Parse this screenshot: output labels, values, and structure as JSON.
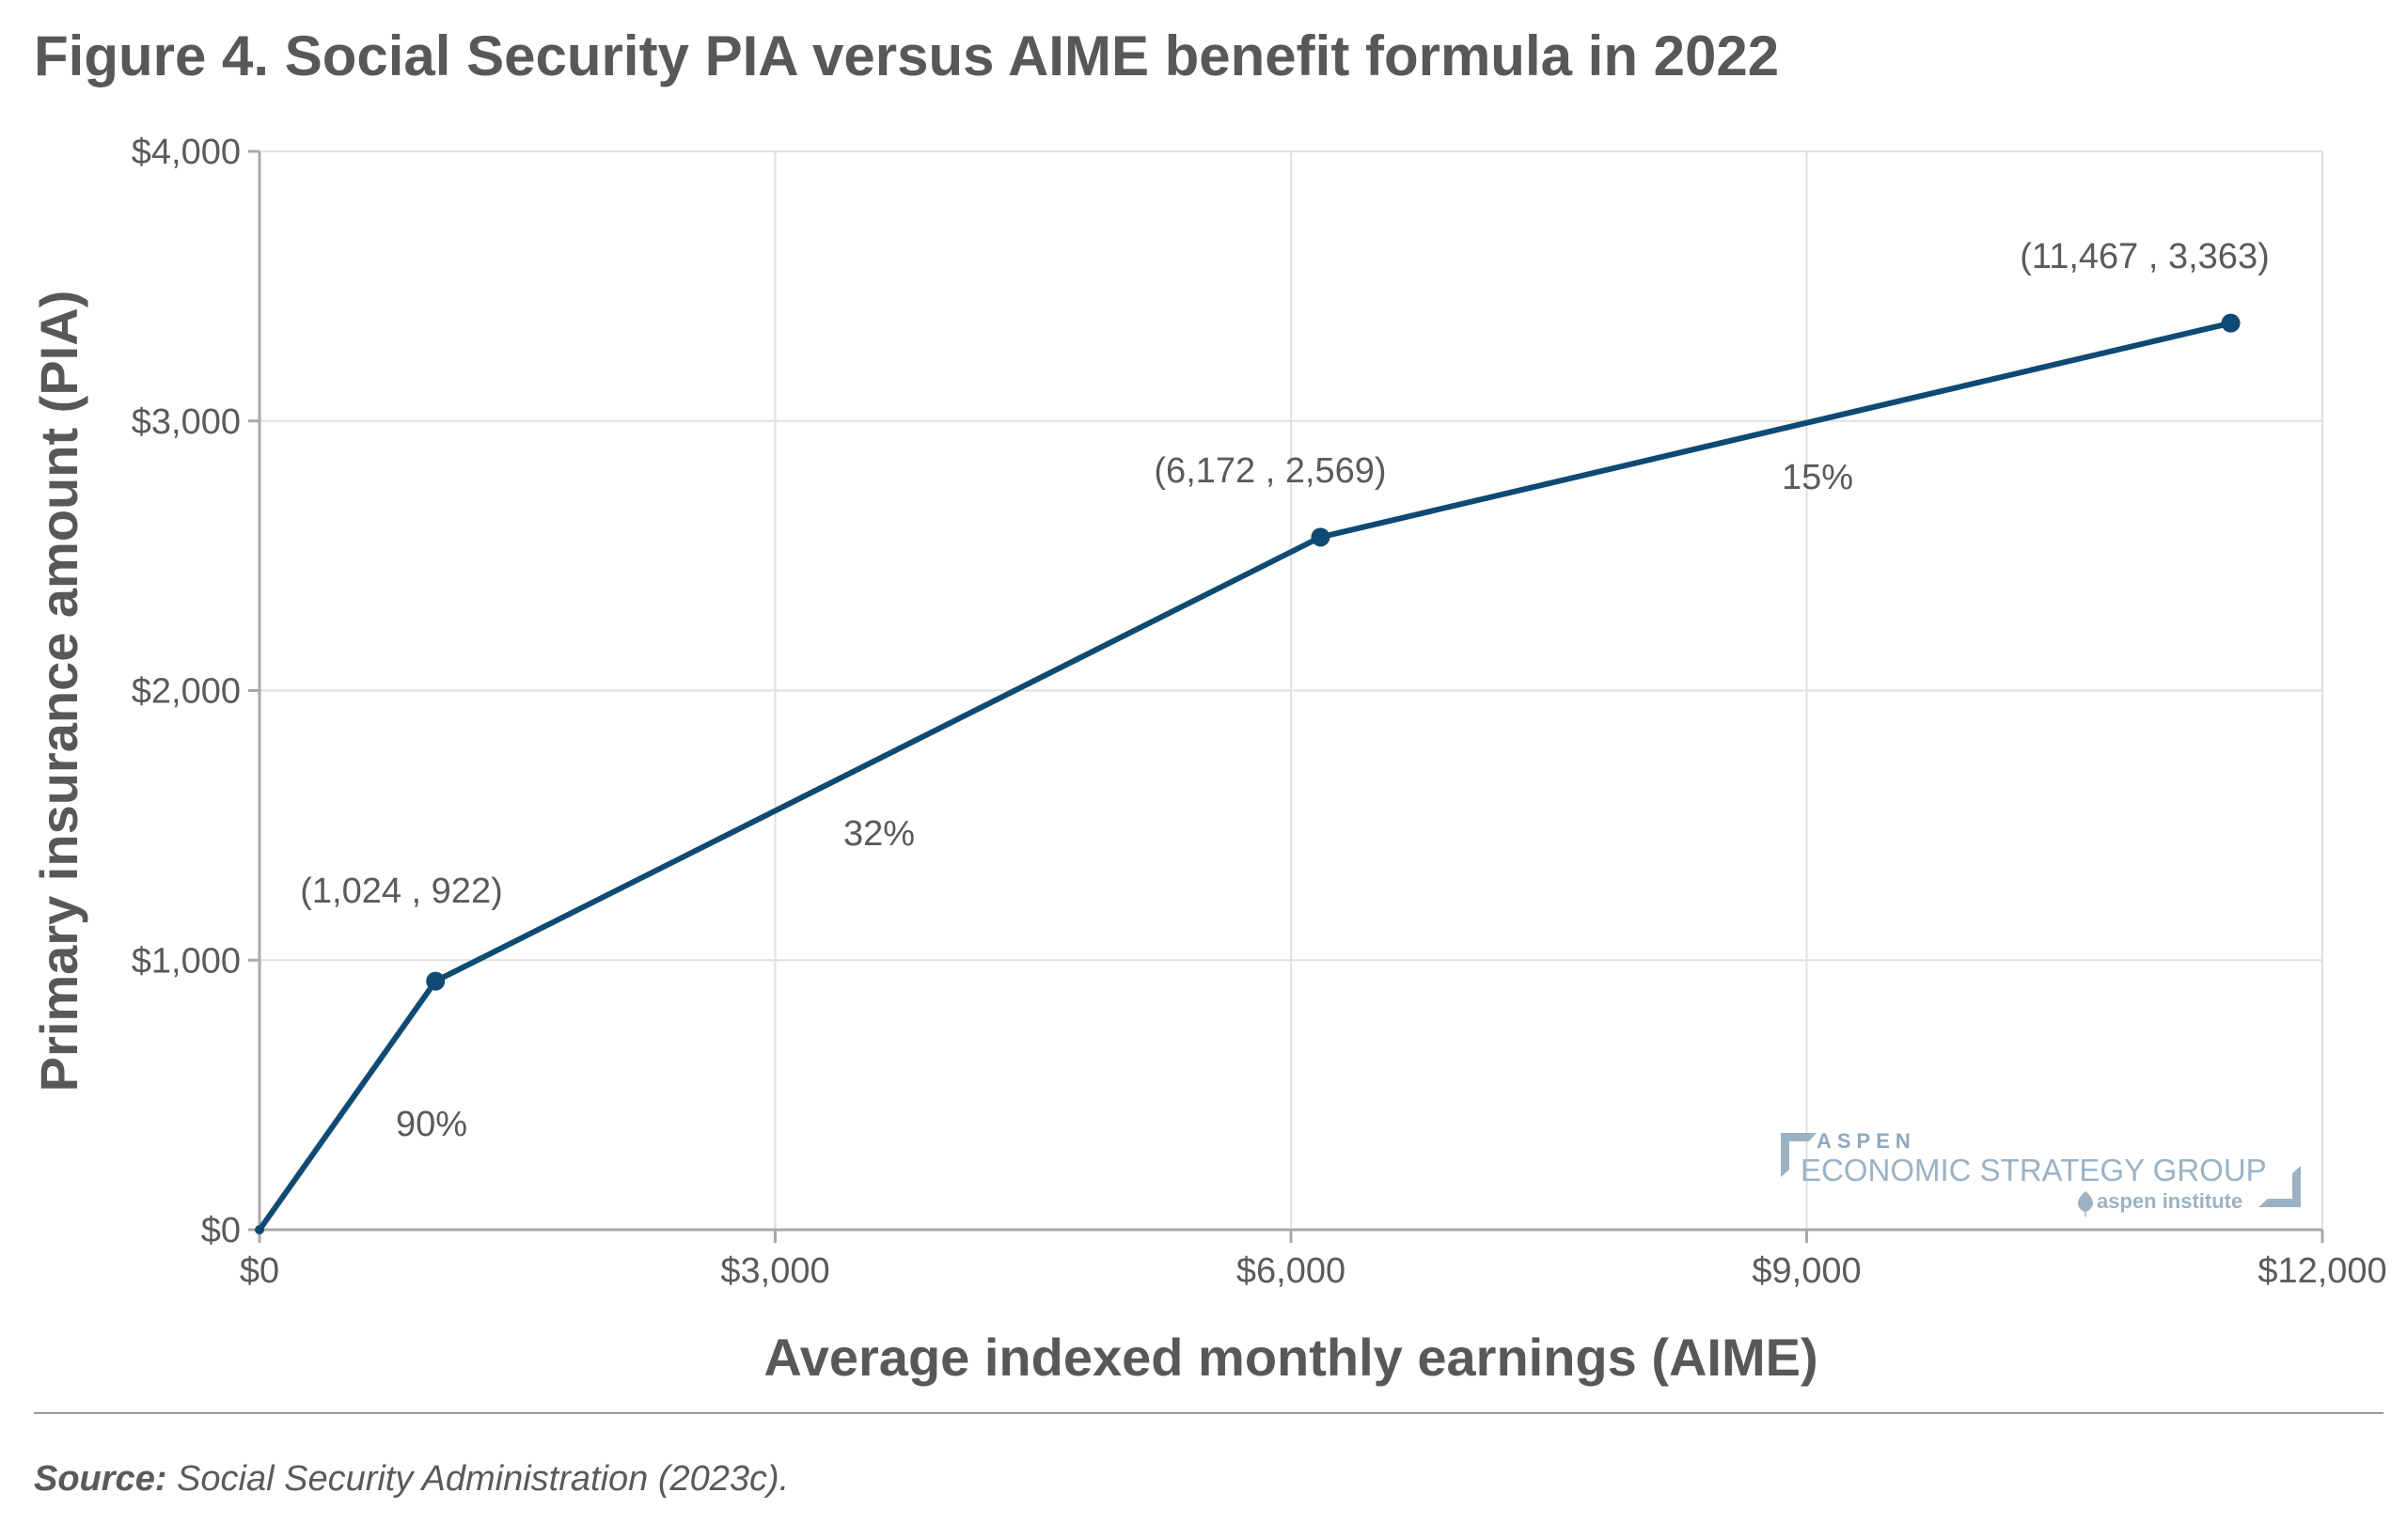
{
  "chart_data": {
    "type": "line",
    "title": "Figure 4. Social Security PIA versus AIME benefit formula in 2022",
    "xlabel": "Average indexed monthly earnings (AIME)",
    "ylabel": "Primary insurance amount (PIA)",
    "xlim": [
      0,
      12000
    ],
    "ylim": [
      0,
      4000
    ],
    "x_ticks": [
      0,
      3000,
      6000,
      9000,
      12000
    ],
    "x_tick_labels": [
      "$0",
      "$3,000",
      "$6,000",
      "$9,000",
      "$12,000"
    ],
    "y_ticks": [
      0,
      1000,
      2000,
      3000,
      4000
    ],
    "y_tick_labels": [
      "$0",
      "$1,000",
      "$2,000",
      "$3,000",
      "$4,000"
    ],
    "grid": true,
    "series": [
      {
        "name": "PIA",
        "color": "#0f4a74",
        "x": [
          0,
          1024,
          6172,
          11467
        ],
        "y": [
          0,
          922,
          2569,
          3363
        ]
      }
    ],
    "point_labels": [
      "(1,024 , 922)",
      "(6,172 , 2,569)",
      "(11,467 , 3,363)"
    ],
    "segment_labels": [
      "90%",
      "32%",
      "15%"
    ],
    "source_label": "Source:",
    "source_text": " Social Security Administration (2023c)."
  },
  "logo": {
    "line1": "ASPEN",
    "line2": "ECONOMIC STRATEGY GROUP",
    "line3": "aspen institute"
  }
}
